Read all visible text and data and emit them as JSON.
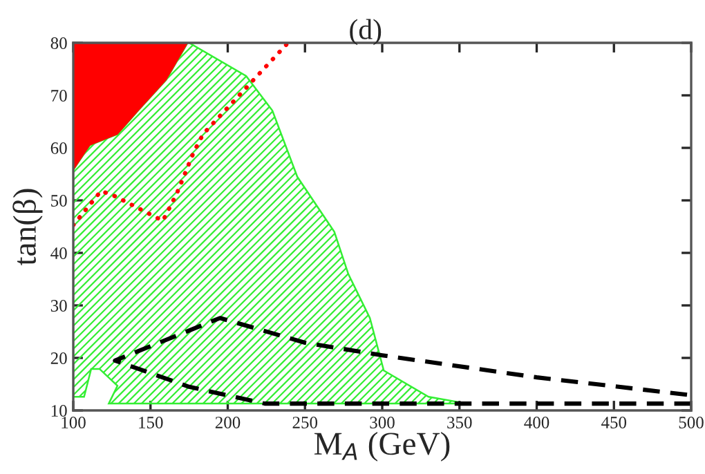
{
  "chart_data": {
    "type": "line",
    "title": "(d)",
    "xlabel": "M$_{A}$ (GeV)",
    "ylabel": "tan(β)",
    "xlim": [
      100,
      500
    ],
    "xticks": [
      100,
      150,
      200,
      250,
      300,
      350,
      400,
      450,
      500
    ],
    "ylim": [
      10,
      80
    ],
    "yticks": [
      10,
      20,
      30,
      40,
      50,
      60,
      70,
      80
    ],
    "grid": false,
    "series": [
      {
        "type": "area",
        "line_style": "solid",
        "color": "#33ee33",
        "x": [
          100,
          100,
          110.7,
          128.6,
          142,
          160,
          174,
          175,
          211.9,
          228.9,
          245,
          269,
          278,
          292,
          301,
          330,
          355,
          123,
          128.6,
          117,
          111.6,
          107,
          100
        ],
        "values": [
          12.6,
          55.8,
          60.5,
          62.6,
          67.1,
          72.9,
          80,
          80,
          73.7,
          67.1,
          54.5,
          44,
          36,
          27.6,
          17.6,
          12.6,
          11.3,
          11.3,
          14.7,
          17.9,
          17.9,
          12.6,
          12.6
        ]
      },
      {
        "type": "area",
        "color": "#ff0000",
        "x": [
          100,
          100,
          110.7,
          128.6,
          142,
          160,
          174
        ],
        "values": [
          80,
          55.8,
          60.5,
          62.6,
          67.1,
          72.9,
          80
        ]
      },
      {
        "line_style": "dotted",
        "color": "#ff0000",
        "x": [
          100,
          118,
          127,
          158,
          167,
          178,
          184,
          239
        ],
        "values": [
          45.3,
          51.8,
          50.8,
          46.1,
          51.3,
          59.2,
          62.6,
          80
        ]
      },
      {
        "line_style": "dashed",
        "color": "#000000",
        "x": [
          500,
          224,
          175,
          127,
          195,
          250,
          300,
          400,
          500
        ],
        "values": [
          11.3,
          11.3,
          14.5,
          19.5,
          27.6,
          22.9,
          20.5,
          16.3,
          12.9
        ]
      }
    ]
  }
}
